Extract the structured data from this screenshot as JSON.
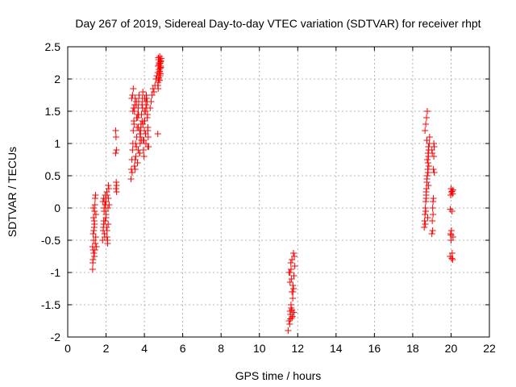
{
  "chart_data": {
    "type": "scatter",
    "title": "Day 267 of 2019, Sidereal Day-to-day VTEC variation (SDTVAR) for receiver rhpt",
    "xlabel": "GPS time / hours",
    "ylabel": "SDTVAR / TECUs",
    "xlim": [
      0,
      22
    ],
    "ylim": [
      -2,
      2.5
    ],
    "xticks": [
      0,
      2,
      4,
      6,
      8,
      10,
      12,
      14,
      16,
      18,
      20,
      22
    ],
    "yticks": [
      -2,
      -1.5,
      -1,
      -0.5,
      0,
      0.5,
      1,
      1.5,
      2,
      2.5
    ],
    "xtick_labels": [
      "0",
      "2",
      "4",
      "6",
      "8",
      "10",
      "12",
      "14",
      "16",
      "18",
      "20",
      "22"
    ],
    "ytick_labels": [
      "-2",
      "-1.5",
      "-1",
      "-0.5",
      "0",
      "0.5",
      "1",
      "1.5",
      "2",
      "2.5"
    ],
    "grid": true,
    "marker": "+",
    "color": "#ff0000",
    "series": [
      {
        "name": "SDTVAR",
        "x": [
          1.3,
          1.32,
          1.33,
          1.35,
          1.36,
          1.38,
          1.4,
          1.42,
          1.43,
          1.45,
          1.47,
          1.3,
          1.33,
          1.36,
          1.4,
          1.44,
          1.34,
          1.38,
          1.42,
          1.46,
          1.5,
          1.31,
          1.35,
          1.39,
          1.82,
          1.85,
          1.88,
          1.9,
          1.93,
          1.96,
          1.98,
          2.0,
          2.03,
          2.05,
          2.08,
          2.1,
          2.12,
          1.84,
          1.88,
          1.92,
          1.96,
          2.0,
          2.04,
          2.08,
          2.12,
          1.86,
          1.9,
          1.95,
          2.0,
          2.05,
          1.87,
          1.93,
          1.99,
          2.05,
          2.11,
          2.14,
          2.16,
          2.5,
          2.52,
          2.54,
          2.5,
          2.53,
          2.55,
          2.52,
          2.55,
          3.3,
          3.32,
          3.35,
          3.38,
          3.4,
          3.42,
          3.45,
          3.48,
          3.5,
          3.52,
          3.55,
          3.58,
          3.6,
          3.62,
          3.65,
          3.68,
          3.7,
          3.72,
          3.75,
          3.78,
          3.8,
          3.82,
          3.85,
          3.88,
          3.9,
          3.92,
          3.95,
          3.98,
          4.0,
          4.02,
          4.05,
          4.08,
          4.1,
          4.12,
          4.15,
          4.18,
          4.2,
          4.22,
          3.34,
          3.4,
          3.46,
          3.52,
          3.58,
          3.64,
          3.7,
          3.76,
          3.82,
          3.88,
          3.94,
          4.0,
          4.06,
          4.12,
          4.18,
          3.36,
          3.44,
          3.52,
          3.6,
          3.68,
          3.76,
          3.84,
          3.92,
          4.0,
          4.08,
          4.16,
          3.38,
          3.48,
          3.58,
          3.68,
          3.78,
          3.88,
          3.98,
          4.08,
          4.18,
          3.42,
          3.54,
          3.66,
          3.78,
          3.9,
          4.02,
          4.14,
          4.3,
          4.35,
          4.4,
          4.45,
          4.5,
          4.55,
          4.6,
          4.65,
          4.7,
          4.72,
          4.74,
          4.76,
          4.78,
          4.8,
          4.82,
          4.84,
          4.86,
          4.88,
          4.7,
          4.74,
          4.78,
          4.82,
          4.86,
          4.72,
          4.76,
          4.8,
          4.84,
          4.72,
          4.76,
          4.8,
          4.84,
          4.75,
          4.79,
          4.83,
          4.73,
          4.81,
          4.7,
          11.5,
          11.55,
          11.6,
          11.65,
          11.7,
          11.75,
          11.8,
          11.85,
          11.58,
          11.62,
          11.66,
          11.7,
          11.74,
          11.78,
          11.82,
          11.6,
          11.64,
          11.68,
          11.72,
          11.55,
          11.6,
          11.65,
          11.7,
          11.75,
          11.8,
          11.62,
          11.7,
          11.78,
          18.6,
          18.62,
          18.64,
          18.66,
          18.68,
          18.7,
          18.72,
          18.74,
          18.76,
          18.78,
          18.8,
          18.82,
          18.84,
          18.86,
          18.88,
          18.64,
          18.68,
          18.72,
          18.76,
          18.8,
          18.84,
          18.66,
          18.7,
          18.74,
          18.78,
          18.82,
          18.7,
          18.76,
          18.82,
          18.68,
          18.74,
          18.8,
          19.0,
          19.02,
          19.04,
          19.06,
          19.08,
          19.1,
          19.12,
          19.0,
          19.04,
          19.08,
          19.12,
          19.02,
          19.06,
          19.1,
          19.95,
          19.98,
          20.0,
          20.02,
          20.05,
          20.08,
          20.1,
          19.98,
          20.02,
          20.06,
          20.1,
          19.96,
          20.0,
          20.04,
          20.08,
          20.0,
          20.06
        ],
        "y": [
          -0.95,
          -0.8,
          -0.65,
          -0.5,
          -0.35,
          -0.2,
          -0.05,
          0.05,
          0.15,
          0.2,
          -0.1,
          -0.6,
          -0.4,
          -0.7,
          -0.25,
          -0.55,
          0.0,
          -0.3,
          -0.65,
          -0.45,
          -0.6,
          -0.85,
          -0.15,
          -0.75,
          -0.5,
          -0.35,
          -0.2,
          -0.05,
          0.1,
          0.2,
          0.05,
          -0.1,
          -0.3,
          -0.45,
          -0.55,
          0.0,
          0.15,
          0.1,
          -0.25,
          -0.4,
          0.05,
          -0.15,
          0.25,
          -0.5,
          0.35,
          -0.3,
          0.0,
          -0.2,
          0.1,
          -0.35,
          0.15,
          -0.45,
          -0.05,
          0.2,
          -0.25,
          0.3,
          0.05,
          1.2,
          1.1,
          0.9,
          0.85,
          0.4,
          0.35,
          0.3,
          0.25,
          0.45,
          0.6,
          0.75,
          0.9,
          1.0,
          1.2,
          1.35,
          1.5,
          1.6,
          1.7,
          0.8,
          0.95,
          1.1,
          1.25,
          1.4,
          1.55,
          1.65,
          1.75,
          0.85,
          1.0,
          1.15,
          1.3,
          1.45,
          1.6,
          1.7,
          1.8,
          0.9,
          1.05,
          1.2,
          1.35,
          1.5,
          1.65,
          1.75,
          1.55,
          1.4,
          1.25,
          1.1,
          0.95,
          1.7,
          1.5,
          1.3,
          0.6,
          1.65,
          0.7,
          1.45,
          0.85,
          1.25,
          1.6,
          1.05,
          1.35,
          1.15,
          1.7,
          0.95,
          0.55,
          1.55,
          0.75,
          1.4,
          0.9,
          1.2,
          1.05,
          1.3,
          1.5,
          1.0,
          1.45,
          1.75,
          0.65,
          1.6,
          1.25,
          1.1,
          1.35,
          0.8,
          1.6,
          1.2,
          1.85,
          1.0,
          1.45,
          1.15,
          1.55,
          1.7,
          1.65,
          1.55,
          1.65,
          1.75,
          1.85,
          1.8,
          1.9,
          2.0,
          2.05,
          2.1,
          2.2,
          2.3,
          2.25,
          2.15,
          2.35,
          2.05,
          2.2,
          2.28,
          2.32,
          1.9,
          2.0,
          2.1,
          2.25,
          2.18,
          1.95,
          2.15,
          2.3,
          2.08,
          1.85,
          2.22,
          2.12,
          2.27,
          2.02,
          1.98,
          2.17,
          2.33,
          2.24,
          1.15,
          -1.9,
          -1.75,
          -1.6,
          -1.5,
          -1.3,
          -1.2,
          -1.05,
          -0.9,
          -1.8,
          -1.65,
          -1.55,
          -1.7,
          -1.4,
          -1.25,
          -0.75,
          -1.0,
          -0.85,
          -1.1,
          -1.68,
          -1.0,
          -1.15,
          -0.95,
          -0.8,
          -1.3,
          -1.62,
          -1.72,
          -1.58,
          -0.7,
          -0.3,
          -0.2,
          -0.1,
          0.0,
          0.1,
          0.2,
          0.3,
          0.4,
          0.5,
          0.6,
          0.7,
          0.8,
          0.9,
          1.0,
          1.1,
          1.2,
          1.3,
          1.4,
          1.5,
          0.85,
          0.65,
          -0.25,
          0.15,
          0.45,
          -0.15,
          0.95,
          0.25,
          0.75,
          0.35,
          -0.05,
          1.05,
          0.55,
          -0.4,
          -0.2,
          0.0,
          0.1,
          0.6,
          0.8,
          0.95,
          0.9,
          -0.35,
          0.15,
          0.55,
          0.85,
          -0.1,
          1.0,
          -0.75,
          -0.4,
          0.3,
          0.25,
          -0.05,
          -0.8,
          -0.45,
          0.2,
          -0.35,
          -0.7,
          0.28,
          -0.02,
          -0.5,
          -0.78,
          0.22,
          -0.42,
          0.26
        ]
      }
    ]
  }
}
